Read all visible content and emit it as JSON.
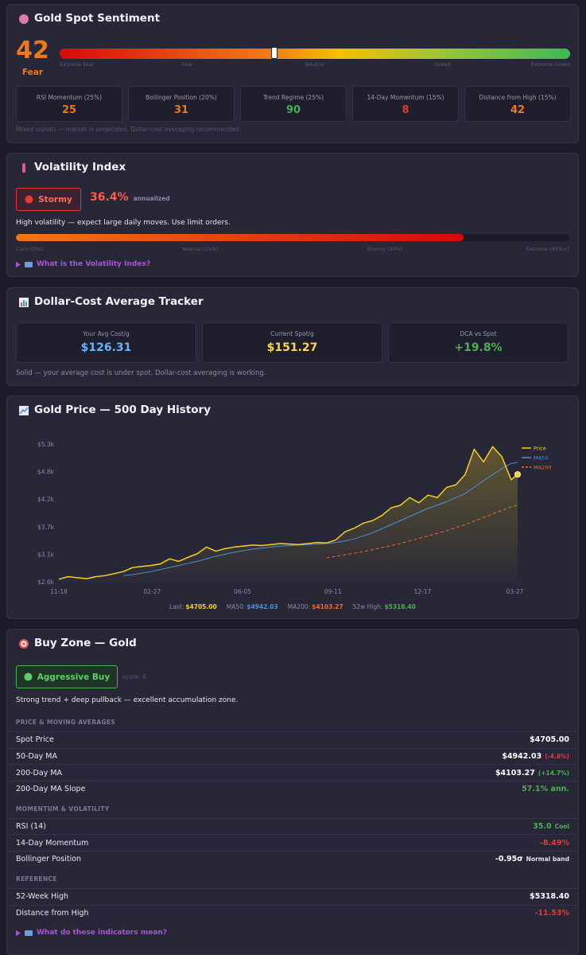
{
  "sentiment": {
    "title": "Gold Spot Sentiment",
    "score": 42,
    "label": "Fear",
    "score_color": "#f07818",
    "scale": [
      {
        "value": 0,
        "label": "Extreme Fear"
      },
      {
        "value": 25,
        "label": "Fear"
      },
      {
        "value": 50,
        "label": "Neutral"
      },
      {
        "value": 75,
        "label": "Greed"
      },
      {
        "value": 100,
        "label": "Extreme Greed"
      }
    ],
    "components": [
      {
        "label": "RSI Momentum (25%)",
        "value": 25,
        "color": "#f07818"
      },
      {
        "label": "Bollinger Position (20%)",
        "value": 31,
        "color": "#f07818"
      },
      {
        "label": "Trend Regime (25%)",
        "value": 90,
        "color": "#4caf50"
      },
      {
        "label": "14-Day Momentum (15%)",
        "value": 8,
        "color": "#e53935"
      },
      {
        "label": "Distance from High (15%)",
        "value": 42,
        "color": "#f07818"
      }
    ],
    "note": "Mixed signals — market is undecided. Dollar-cost averaging recommended."
  },
  "volatility": {
    "title": "Volatility Index",
    "badge": "Stormy",
    "value": 36.4,
    "value_label": "36.4%",
    "unit": "annualized",
    "description": "High volatility — expect large daily moves. Use limit orders.",
    "scale": [
      {
        "value": 0,
        "label": "Calm (0%)"
      },
      {
        "value": 15,
        "label": "Normal (15%)"
      },
      {
        "value": 30,
        "label": "Stormy (30%)"
      },
      {
        "value": 45,
        "label": "Extreme (45%+)"
      }
    ],
    "link": "What is the Volatility Index?"
  },
  "dca": {
    "title": "Dollar-Cost Average Tracker",
    "cards": [
      {
        "label": "Your Avg Cost/g",
        "value": "$126.31",
        "color": "#64b5f6"
      },
      {
        "label": "Current Spot/g",
        "value": "$151.27",
        "color": "#ffd54f"
      },
      {
        "label": "DCA vs Spot",
        "value": "+19.8%",
        "color": "#4caf50"
      }
    ],
    "note": "Solid — your average cost is under spot. Dollar-cost averaging is working."
  },
  "chart_data": {
    "type": "line",
    "title": "Gold Price — 500 Day History",
    "x": [
      0,
      10,
      20,
      30,
      40,
      50,
      60,
      70,
      80,
      90,
      100,
      110,
      120,
      130,
      140,
      150,
      160,
      170,
      180,
      190,
      200,
      210,
      220,
      230,
      240,
      250,
      260,
      270,
      280,
      290,
      300,
      310,
      320,
      330,
      340,
      350,
      360,
      370,
      380,
      390,
      400,
      410,
      420,
      430,
      440,
      450,
      460,
      470,
      480,
      490,
      497
    ],
    "series": [
      {
        "name": "Price",
        "color": "#f5d020",
        "dashed": false,
        "values": [
          2650,
          2700,
          2680,
          2660,
          2700,
          2720,
          2760,
          2800,
          2880,
          2900,
          2920,
          2950,
          3050,
          3000,
          3080,
          3150,
          3280,
          3200,
          3250,
          3280,
          3300,
          3320,
          3310,
          3330,
          3350,
          3340,
          3330,
          3350,
          3370,
          3360,
          3420,
          3580,
          3650,
          3750,
          3800,
          3900,
          4050,
          4100,
          4250,
          4150,
          4300,
          4250,
          4450,
          4500,
          4700,
          5200,
          4950,
          5250,
          5050,
          4600,
          4705
        ]
      },
      {
        "name": "MA50",
        "color": "#4a90d9",
        "dashed": false,
        "values": [
          null,
          null,
          null,
          null,
          null,
          null,
          null,
          2720,
          2740,
          2770,
          2800,
          2840,
          2880,
          2920,
          2960,
          3000,
          3050,
          3100,
          3140,
          3180,
          3210,
          3240,
          3260,
          3280,
          3300,
          3310,
          3320,
          3330,
          3340,
          3350,
          3370,
          3400,
          3440,
          3500,
          3560,
          3640,
          3720,
          3800,
          3880,
          3960,
          4040,
          4100,
          4170,
          4250,
          4330,
          4450,
          4580,
          4700,
          4820,
          4920,
          4942
        ]
      },
      {
        "name": "MA200",
        "color": "#f06a28",
        "dashed": true,
        "values": [
          null,
          null,
          null,
          null,
          null,
          null,
          null,
          null,
          null,
          null,
          null,
          null,
          null,
          null,
          null,
          null,
          null,
          null,
          null,
          null,
          null,
          null,
          null,
          null,
          null,
          null,
          null,
          null,
          null,
          3070,
          3100,
          3130,
          3160,
          3190,
          3230,
          3270,
          3310,
          3350,
          3400,
          3450,
          3500,
          3550,
          3600,
          3660,
          3720,
          3790,
          3860,
          3930,
          4000,
          4070,
          4103
        ]
      }
    ],
    "xlim": [
      0,
      497
    ],
    "xticks": [
      {
        "value": 0,
        "label": "11-18"
      },
      {
        "value": 101,
        "label": "02-27"
      },
      {
        "value": 199,
        "label": "06-05"
      },
      {
        "value": 297,
        "label": "09-11"
      },
      {
        "value": 394,
        "label": "12-17"
      },
      {
        "value": 494,
        "label": "03-27"
      }
    ],
    "ylim": [
      2600,
      5300
    ],
    "yticks": [
      {
        "value": 2600,
        "label": "$2.6k"
      },
      {
        "value": 3140,
        "label": "$3.1k"
      },
      {
        "value": 3680,
        "label": "$3.7k"
      },
      {
        "value": 4220,
        "label": "$4.2k"
      },
      {
        "value": 4760,
        "label": "$4.8k"
      },
      {
        "value": 5300,
        "label": "$5.3k"
      }
    ],
    "grid": false,
    "legend": "upper right",
    "stats": [
      {
        "label": "Last:",
        "value": "$4705.00",
        "color": "#f5d020"
      },
      {
        "label": "MA50:",
        "value": "$4942.03",
        "color": "#4a90d9"
      },
      {
        "label": "MA200:",
        "value": "$4103.27",
        "color": "#f06a28"
      },
      {
        "label": "52w High:",
        "value": "$5318.40",
        "color": "#4caf50"
      }
    ]
  },
  "buy_zone": {
    "title": "Buy Zone — Gold",
    "badge": "Aggressive Buy",
    "score": "score: 6",
    "description": "Strong trend + deep pullback — excellent accumulation zone.",
    "sections": [
      {
        "heading": "PRICE & MOVING AVERAGES",
        "rows": [
          {
            "label": "Spot Price",
            "value": "$4705.00",
            "value_color": "#ffffff"
          },
          {
            "label": "50-Day MA",
            "value": "$4942.03",
            "value_color": "#ffffff",
            "note": "(-4.8%)",
            "note_color": "#e53935"
          },
          {
            "label": "200-Day MA",
            "value": "$4103.27",
            "value_color": "#ffffff",
            "note": "(+14.7%)",
            "note_color": "#4caf50"
          },
          {
            "label": "200-Day MA Slope",
            "value": "57.1% ann.",
            "value_color": "#4caf50"
          }
        ]
      },
      {
        "heading": "MOMENTUM & VOLATILITY",
        "rows": [
          {
            "label": "RSI (14)",
            "value": "35.0",
            "value_color": "#4caf50",
            "note": "Cool",
            "note_color": "#4caf50"
          },
          {
            "label": "14-Day Momentum",
            "value": "-8.49%",
            "value_color": "#e53935"
          },
          {
            "label": "Bollinger Position",
            "value": "-0.95σ",
            "value_color": "#ffffff",
            "note": "Normal band",
            "note_color": "#e0e0e8"
          }
        ]
      },
      {
        "heading": "REFERENCE",
        "rows": [
          {
            "label": "52-Week High",
            "value": "$5318.40",
            "value_color": "#ffffff"
          },
          {
            "label": "Distance from High",
            "value": "-11.53%",
            "value_color": "#e53935"
          }
        ]
      }
    ],
    "link": "What do these indicators mean?"
  }
}
